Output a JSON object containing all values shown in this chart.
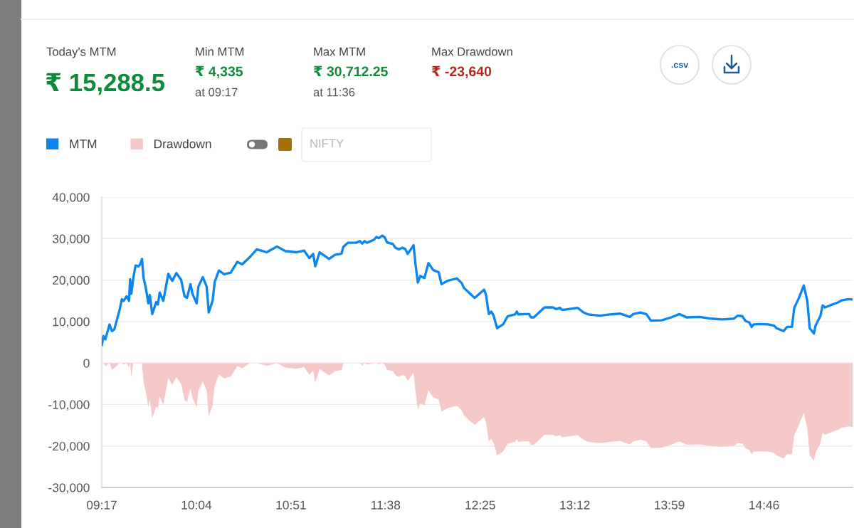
{
  "chart_data": {
    "type": "line",
    "x": [
      9.2833,
      9.297,
      9.313,
      9.348,
      9.367,
      9.387,
      9.43,
      9.45,
      9.465,
      9.489,
      9.509,
      9.518,
      9.528,
      9.544,
      9.563,
      9.587,
      9.601,
      9.616,
      9.63,
      9.646,
      9.669,
      9.681,
      9.701,
      9.734,
      9.748,
      9.763,
      9.793,
      9.834,
      9.867,
      9.901,
      9.94,
      9.969,
      9.989,
      10.018,
      10.034,
      10.069,
      10.083,
      10.12,
      10.152,
      10.169,
      10.201,
      10.218,
      10.253,
      10.297,
      10.351,
      10.406,
      10.446,
      10.508,
      10.567,
      10.649,
      10.734,
      10.802,
      10.891,
      10.959,
      11.002,
      11.034,
      11.051,
      11.087,
      11.126,
      11.165,
      11.214,
      11.269,
      11.283,
      11.322,
      11.39,
      11.42,
      11.44,
      11.459,
      11.479,
      11.537,
      11.557,
      11.577,
      11.606,
      11.626,
      11.645,
      11.694,
      11.714,
      11.743,
      11.773,
      11.796,
      11.816,
      11.865,
      11.88,
      11.9,
      11.92,
      11.955,
      11.988,
      12.028,
      12.073,
      12.096,
      12.145,
      12.224,
      12.263,
      12.282,
      12.322,
      12.371,
      12.449,
      12.465,
      12.488,
      12.508,
      12.527,
      12.557,
      12.606,
      12.645,
      12.704,
      12.72,
      12.733,
      12.782,
      12.822,
      12.837,
      12.861,
      12.949,
      13.018,
      13.047,
      13.076,
      13.096,
      13.223,
      13.272,
      13.312,
      13.41,
      13.488,
      13.576,
      13.596,
      13.655,
      13.684,
      13.743,
      13.792,
      13.831,
      13.919,
      13.998,
      14.066,
      14.125,
      14.233,
      14.331,
      14.419,
      14.517,
      14.547,
      14.586,
      14.615,
      14.645,
      14.664,
      14.68,
      14.733,
      14.801,
      14.85,
      14.87,
      14.929,
      14.958,
      14.998,
      15.017,
      15.056,
      15.096,
      15.125,
      15.139,
      15.145,
      15.18,
      15.193,
      15.233,
      15.252,
      15.272,
      15.331,
      15.38,
      15.409,
      15.468,
      15.5
    ],
    "series": [
      {
        "name": "MTM",
        "color": "#0b86f0",
        "values": [
          4300,
          6500,
          5700,
          9300,
          7700,
          8100,
          12700,
          15400,
          15000,
          16100,
          15000,
          20200,
          16700,
          20400,
          23500,
          23300,
          23800,
          25100,
          20400,
          18400,
          14400,
          16400,
          11800,
          14700,
          14100,
          17000,
          15000,
          21500,
          19800,
          21700,
          20100,
          16100,
          15700,
          19000,
          16700,
          14400,
          18400,
          20700,
          18400,
          12200,
          15000,
          19500,
          22300,
          21400,
          21800,
          24400,
          23800,
          25500,
          27400,
          26700,
          28100,
          27000,
          26700,
          27100,
          25300,
          26300,
          23300,
          26700,
          25900,
          25100,
          26100,
          26400,
          28000,
          29000,
          29000,
          29400,
          28800,
          29400,
          29000,
          29700,
          30400,
          30100,
          30700,
          30300,
          29100,
          28700,
          27800,
          27400,
          27800,
          27500,
          26300,
          28400,
          24100,
          19400,
          21000,
          20500,
          24100,
          22400,
          21900,
          19000,
          19800,
          20400,
          19300,
          18100,
          17000,
          15700,
          17700,
          16400,
          11800,
          12400,
          11500,
          8400,
          9300,
          11300,
          11700,
          12400,
          11700,
          11800,
          11800,
          11000,
          11000,
          13400,
          13400,
          13000,
          13300,
          12800,
          13300,
          12200,
          11700,
          11400,
          11700,
          11900,
          11700,
          11100,
          11800,
          12200,
          11800,
          10200,
          10300,
          11000,
          11800,
          11000,
          11100,
          10700,
          10500,
          10700,
          11400,
          11300,
          10100,
          9800,
          8700,
          9300,
          9400,
          9300,
          9000,
          8400,
          7700,
          8700,
          8700,
          13300,
          15700,
          18700,
          15000,
          10400,
          8400,
          7100,
          9000,
          11300,
          13900,
          13400,
          14100,
          14600,
          15100,
          15400,
          15300
        ]
      },
      {
        "name": "Drawdown",
        "type": "area",
        "color": "#f6c9c9",
        "values": [
          0,
          0,
          -800,
          0,
          -1600,
          -1200,
          0,
          0,
          -400,
          0,
          -1100,
          0,
          -3500,
          0,
          0,
          -200,
          0,
          0,
          -4700,
          -6700,
          -10700,
          -8700,
          -13300,
          -10400,
          -11000,
          -8100,
          -10100,
          -3600,
          -5300,
          -3400,
          -5000,
          -9000,
          -9400,
          -6100,
          -8400,
          -10700,
          -6700,
          -4400,
          -6700,
          -12900,
          -10100,
          -5600,
          -2800,
          -3700,
          -3300,
          -700,
          -1300,
          0,
          0,
          -700,
          0,
          -1100,
          -1400,
          -1000,
          -2800,
          -1800,
          -4800,
          -1400,
          -2200,
          -3000,
          -2000,
          -1700,
          -100,
          0,
          0,
          0,
          -600,
          0,
          -400,
          0,
          0,
          -300,
          0,
          -400,
          -1600,
          -2000,
          -2900,
          -3300,
          -2900,
          -3200,
          -4400,
          -2300,
          -6600,
          -11300,
          -9700,
          -10200,
          -6600,
          -8300,
          -8800,
          -11700,
          -10900,
          -10300,
          -11400,
          -12600,
          -13700,
          -15000,
          -13000,
          -14300,
          -18900,
          -18300,
          -19200,
          -22300,
          -21400,
          -19400,
          -19000,
          -18300,
          -19000,
          -18900,
          -18900,
          -19700,
          -19700,
          -17300,
          -17300,
          -17700,
          -17400,
          -17900,
          -17400,
          -18500,
          -19000,
          -19300,
          -19000,
          -18800,
          -19000,
          -19600,
          -18900,
          -18500,
          -18900,
          -20500,
          -20400,
          -19700,
          -18900,
          -19700,
          -19600,
          -20000,
          -20200,
          -20000,
          -19300,
          -19400,
          -20600,
          -20900,
          -22000,
          -21400,
          -21300,
          -21400,
          -21700,
          -22300,
          -23000,
          -22000,
          -22000,
          -17400,
          -15000,
          -12000,
          -15700,
          -20300,
          -22300,
          -23600,
          -21700,
          -19400,
          -16800,
          -17300,
          -16600,
          -16100,
          -15600,
          -15300,
          -15400
        ]
      }
    ],
    "xlim": [
      9.2833,
      15.5
    ],
    "xticks": [
      {
        "value": 9.2833,
        "label": "09:17"
      },
      {
        "value": 10.0667,
        "label": "10:04"
      },
      {
        "value": 10.85,
        "label": "10:51"
      },
      {
        "value": 11.6333,
        "label": "11:38"
      },
      {
        "value": 12.4167,
        "label": "12:25"
      },
      {
        "value": 13.2,
        "label": "13:12"
      },
      {
        "value": 13.9833,
        "label": "13:59"
      },
      {
        "value": 14.7667,
        "label": "14:46"
      }
    ],
    "ylim": [
      -30000,
      40000
    ],
    "yticks": [
      {
        "value": 40000,
        "label": "40,000"
      },
      {
        "value": 30000,
        "label": "30,000"
      },
      {
        "value": 20000,
        "label": "20,000"
      },
      {
        "value": 10000,
        "label": "10,000"
      },
      0,
      {
        "value": -10000,
        "label": "-10,000"
      },
      {
        "value": -20000,
        "label": "-20,000"
      },
      {
        "value": -30000,
        "label": "-30,000"
      }
    ],
    "grid": "y",
    "legend": "top left",
    "line_style": "solid",
    "annotations": [
      "Today's MTM",
      "₹ 15,288.5",
      "Min MTM",
      "₹ 4,335",
      "at 09:17",
      "Max MTM",
      "₹ 30,712.25",
      "at 11:36",
      "Max Drawdown",
      "₹ -23,640",
      ".csv",
      "NIFTY"
    ]
  }
}
